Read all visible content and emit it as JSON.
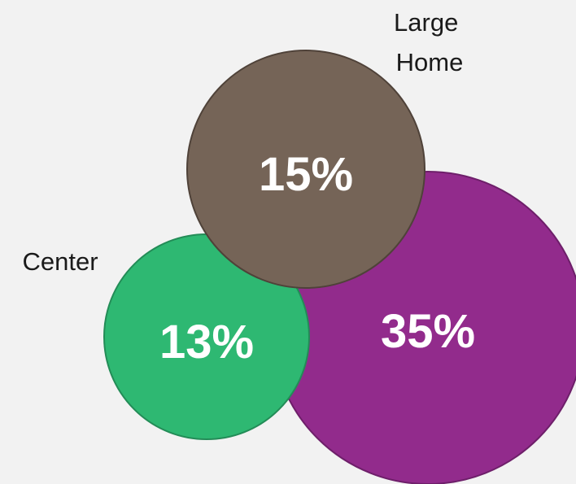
{
  "chart_data": {
    "type": "bubble",
    "title": "",
    "bubbles": [
      {
        "id": "purple",
        "label": "",
        "value": 35,
        "value_text": "35%",
        "color": "#922b8c",
        "stroke": "#6e1f6a"
      },
      {
        "id": "large-home",
        "label": "Large Home",
        "value": 15,
        "value_text": "15%",
        "color": "#756457",
        "stroke": "#4f4239"
      },
      {
        "id": "center",
        "label": "Center",
        "value": 13,
        "value_text": "13%",
        "color": "#2eb872",
        "stroke": "#238c57"
      }
    ]
  },
  "colors": {
    "background": "#f2f2f2",
    "value_text": "#ffffff",
    "label_text": "#1a1a1a"
  }
}
